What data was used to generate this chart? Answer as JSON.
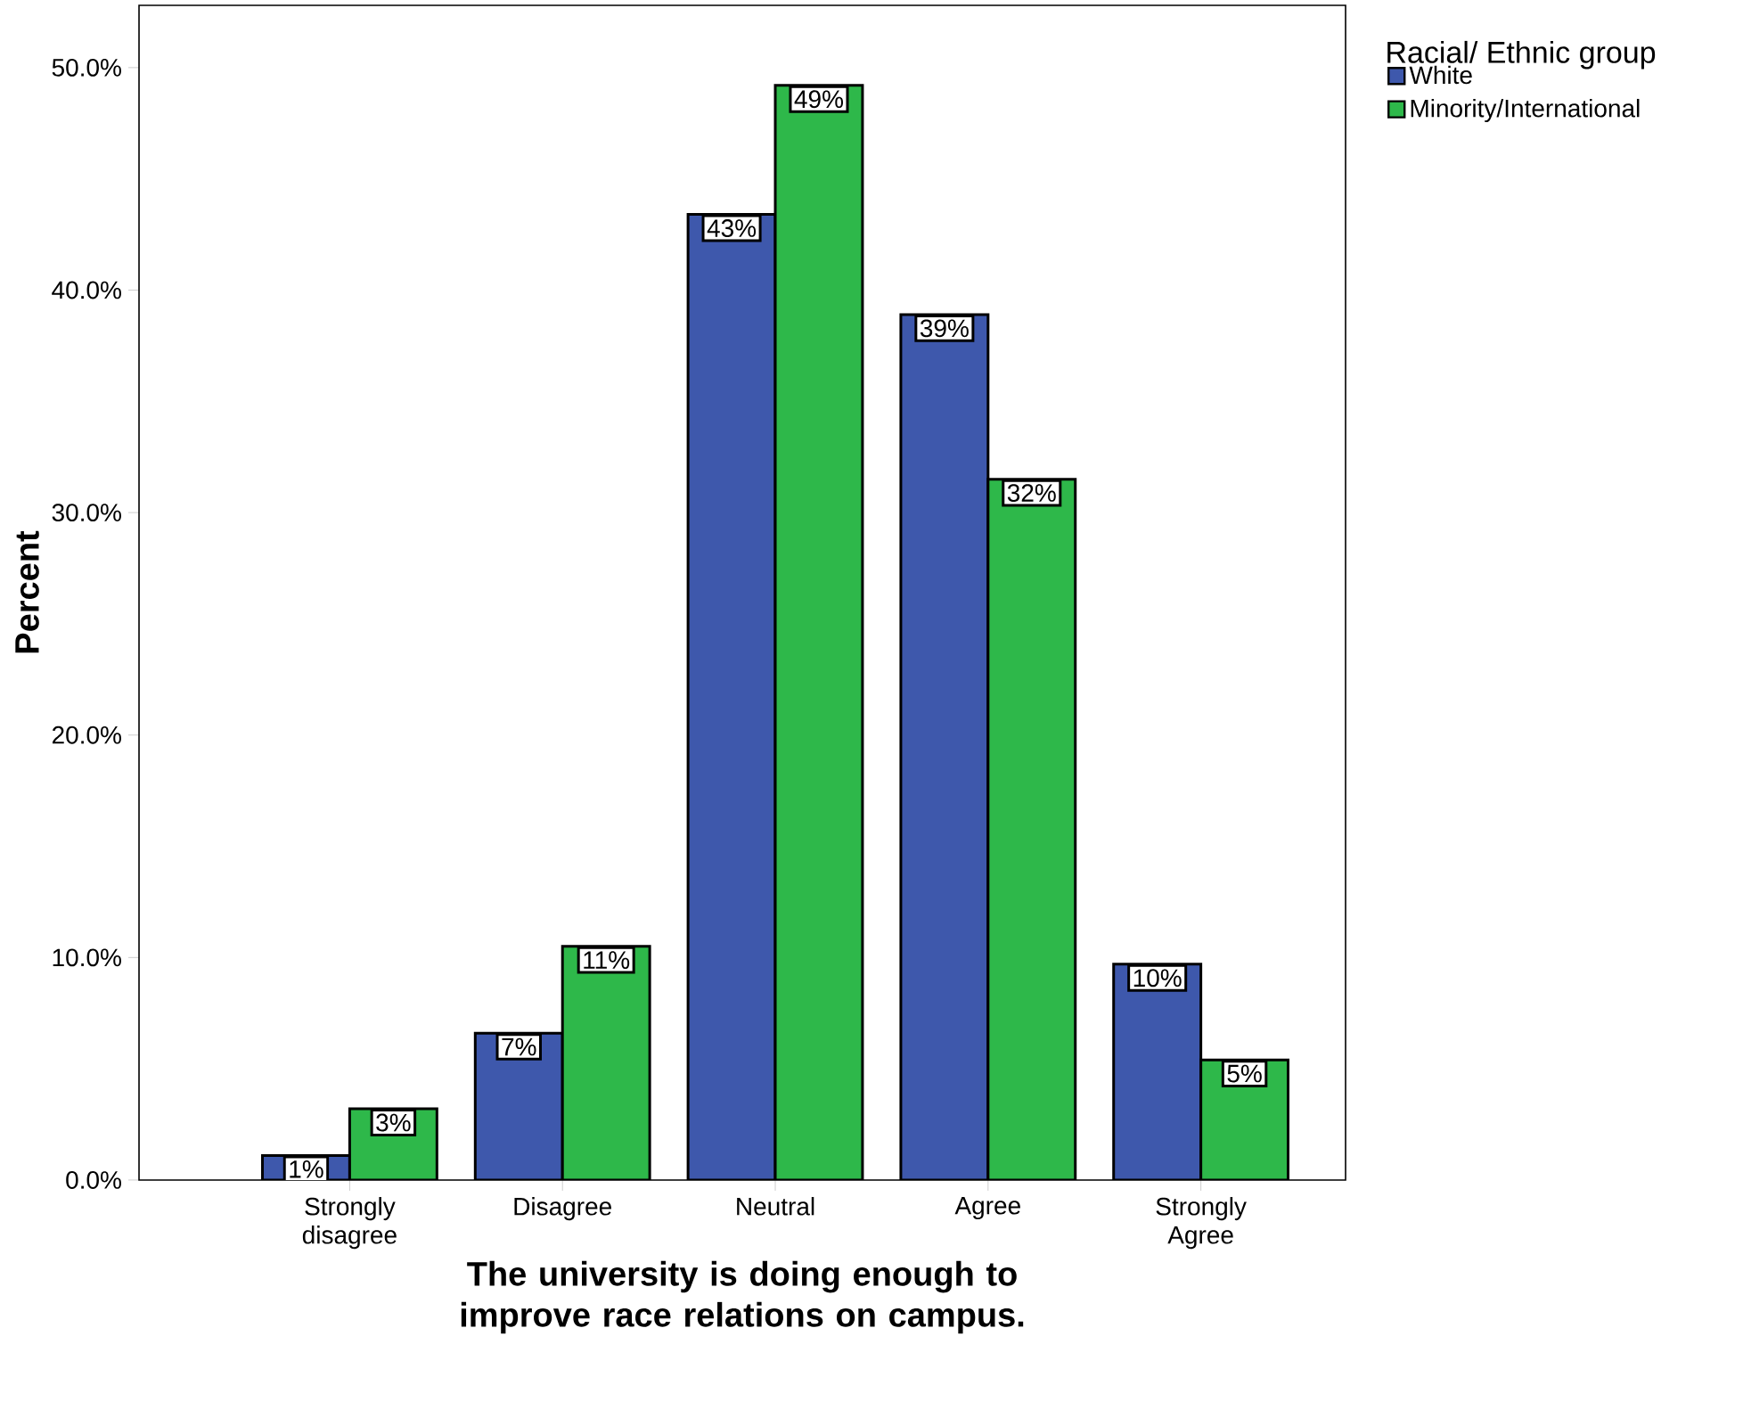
{
  "chart_data": {
    "type": "bar",
    "categories": [
      "Strongly disagree",
      "Disagree",
      "Neutral",
      "Agree",
      "Strongly Agree"
    ],
    "xlabel": "The university is doing enough to improve race relations on campus.",
    "ylabel": "Percent",
    "legend_title": "Racial/ Ethnic group",
    "series": [
      {
        "name": "White",
        "color": "#3e58ac",
        "values": [
          1.1,
          6.6,
          43.4,
          38.9,
          9.7
        ],
        "value_labels": [
          "1%",
          "7%",
          "43%",
          "39%",
          "10%"
        ]
      },
      {
        "name": "Minority/International",
        "color": "#2eb84a",
        "values": [
          3.2,
          10.5,
          49.2,
          31.5,
          5.4
        ],
        "value_labels": [
          "3%",
          "11%",
          "49%",
          "32%",
          "5%"
        ]
      }
    ],
    "ylim": [
      0,
      52.8
    ],
    "yticks": [
      {
        "value": 0,
        "label": "0.0%"
      },
      {
        "value": 10,
        "label": "10.0%"
      },
      {
        "value": 20,
        "label": "20.0%"
      },
      {
        "value": 30,
        "label": "30.0%"
      },
      {
        "value": 40,
        "label": "40.0%"
      },
      {
        "value": 50,
        "label": "50.0%"
      }
    ],
    "grid": false,
    "legend": "top right"
  }
}
